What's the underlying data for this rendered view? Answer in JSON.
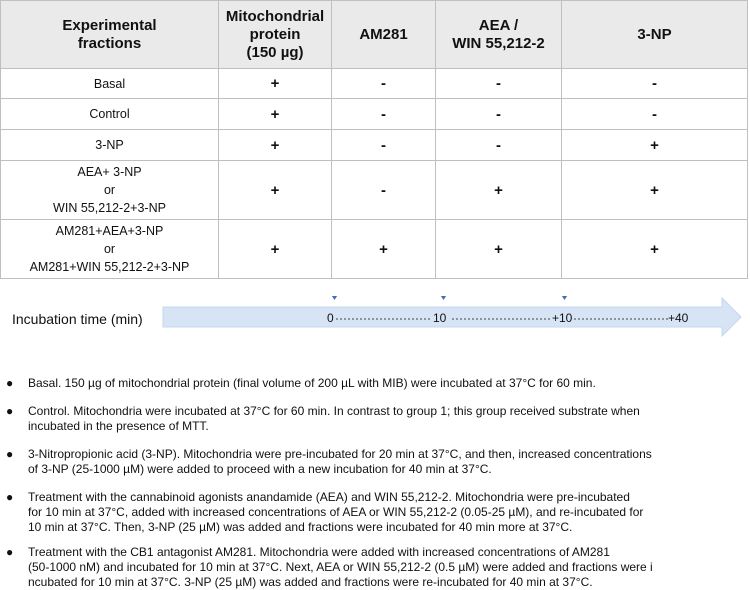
{
  "table": {
    "headers": [
      [
        "Experimental",
        "fractions"
      ],
      [
        "Mitochondrial",
        "protein",
        "(150 µg)"
      ],
      [
        "AM281"
      ],
      [
        "AEA /",
        "WIN 55,212-2"
      ],
      [
        "3-NP"
      ]
    ],
    "rows": [
      {
        "label": [
          "Basal"
        ],
        "cells": [
          "+",
          "-",
          "-",
          "-"
        ]
      },
      {
        "label": [
          "Control"
        ],
        "cells": [
          "+",
          "-",
          "-",
          "-"
        ]
      },
      {
        "label": [
          "3-NP"
        ],
        "cells": [
          "+",
          "-",
          "-",
          "+"
        ]
      },
      {
        "label": [
          "AEA+ 3-NP",
          "or",
          "WIN 55,212-2+3-NP"
        ],
        "cells": [
          "+",
          "-",
          "+",
          "+"
        ]
      },
      {
        "label": [
          "AM281+AEA+3-NP",
          "or",
          "AM281+WIN 55,212-2+3-NP"
        ],
        "cells": [
          "+",
          "+",
          "+",
          "+"
        ]
      }
    ]
  },
  "timeline": {
    "label": "Incubation time (min)",
    "ticks": [
      "0",
      "10",
      "+10",
      "+40"
    ],
    "colors": {
      "bar": "#d6e4f5",
      "marker": "#3f74b3"
    }
  },
  "bullets": [
    [
      "Basal. 150 µg of mitochondrial protein (final volume of 200 µL with MIB) were incubated at 37°C for 60 min."
    ],
    [
      "Control. Mitochondria were incubated at 37°C for 60 min. In contrast to group 1; this group received substrate when",
      "incubated in the presence of MTT."
    ],
    [
      "3-Nitropropionic acid (3-NP). Mitochondria were pre-incubated for 20 min at 37°C, and then, increased concentrations",
      "of 3-NP (25-1000 µM) were added  to proceed with a new incubation for 40 min at 37°C."
    ],
    [
      "Treatment  with  the  cannabinoid  agonists  anandamide  (AEA)  and  WIN 55,212-2.  Mitochondria  were  pre-incubated",
      " for 10 min at 37°C, added with increased concentrations of AEA or WIN 55,212-2 (0.05-25 µM), and re-incubated for",
      "10 min at 37°C. Then, 3-NP (25 µM) was added and fractions were incubated for 40 min more at 37°C."
    ],
    [
      "Treatment with the CB1 antagonist AM281. Mitochondria were added with increased concentrations of AM281",
      "(50-1000 nM) and incubated for 10 min at 37°C. Next, AEA or WIN 55,212-2 (0.5 µM) were added and fractions were i",
      "ncubated for 10 min at 37°C. 3-NP (25 µM) was added and fractions were re-incubated for 40 min at 37°C."
    ]
  ]
}
